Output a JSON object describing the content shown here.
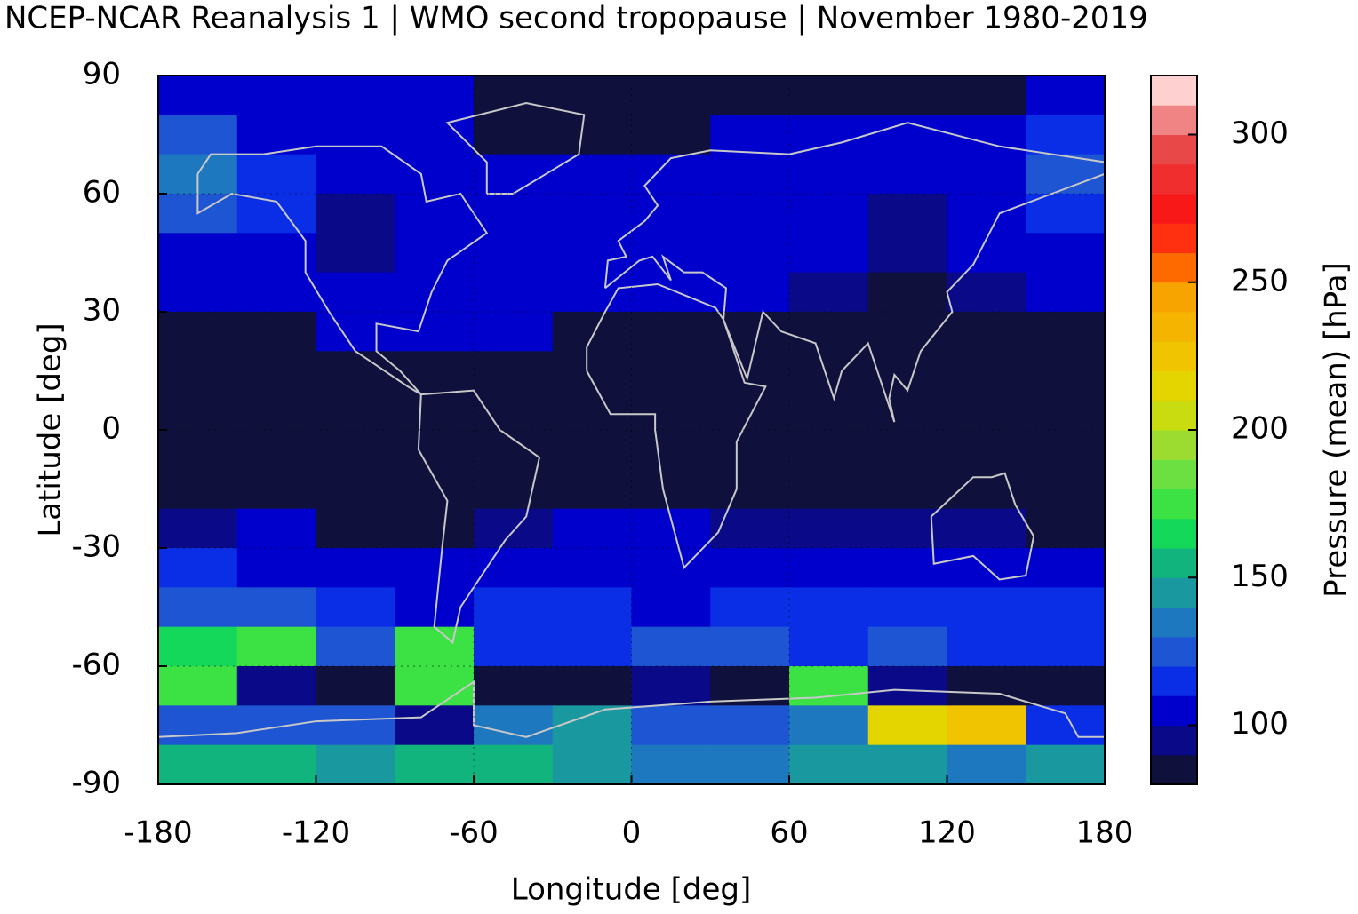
{
  "chart_data": {
    "type": "heatmap",
    "title": "NCEP-NCAR Reanalysis 1 | WMO second tropopause | November 1980-2019",
    "x_label": "Longitude [deg]",
    "y_label": "Latitude [deg]",
    "colorbar_label": "Pressure (mean) [hPa]",
    "x": [
      -165,
      -135,
      -105,
      -75,
      -45,
      -15,
      15,
      45,
      75,
      105,
      135,
      165
    ],
    "y": [
      85,
      75,
      65,
      55,
      45,
      35,
      25,
      15,
      5,
      -5,
      -15,
      -25,
      -35,
      -45,
      -55,
      -65,
      -75,
      -85
    ],
    "z": [
      [
        100,
        105,
        105,
        100,
        85,
        85,
        85,
        85,
        85,
        85,
        85,
        100
      ],
      [
        125,
        105,
        105,
        105,
        85,
        85,
        85,
        100,
        105,
        105,
        105,
        110
      ],
      [
        135,
        115,
        105,
        105,
        105,
        105,
        105,
        105,
        105,
        105,
        108,
        125
      ],
      [
        120,
        110,
        95,
        105,
        105,
        105,
        105,
        105,
        105,
        95,
        105,
        115
      ],
      [
        105,
        105,
        95,
        105,
        105,
        105,
        105,
        105,
        100,
        90,
        100,
        105
      ],
      [
        105,
        105,
        105,
        105,
        105,
        105,
        105,
        100,
        90,
        85,
        95,
        105
      ],
      [
        85,
        85,
        100,
        105,
        105,
        85,
        85,
        85,
        85,
        85,
        85,
        85
      ],
      [
        85,
        85,
        85,
        85,
        85,
        85,
        85,
        85,
        85,
        85,
        85,
        85
      ],
      [
        85,
        85,
        85,
        85,
        85,
        85,
        85,
        85,
        85,
        85,
        85,
        85
      ],
      [
        85,
        85,
        85,
        85,
        85,
        85,
        85,
        85,
        85,
        85,
        85,
        85
      ],
      [
        85,
        85,
        85,
        85,
        85,
        85,
        85,
        85,
        85,
        85,
        85,
        85
      ],
      [
        95,
        100,
        85,
        85,
        95,
        100,
        100,
        90,
        90,
        90,
        95,
        85
      ],
      [
        110,
        108,
        105,
        105,
        100,
        105,
        105,
        100,
        105,
        105,
        105,
        105
      ],
      [
        125,
        120,
        115,
        108,
        110,
        110,
        105,
        110,
        110,
        110,
        110,
        115
      ],
      [
        160,
        175,
        120,
        175,
        115,
        115,
        120,
        125,
        115,
        120,
        110,
        115
      ],
      [
        175,
        90,
        85,
        170,
        85,
        85,
        90,
        85,
        175,
        90,
        85,
        85
      ],
      [
        120,
        125,
        120,
        90,
        130,
        140,
        125,
        120,
        130,
        210,
        225,
        110
      ],
      [
        155,
        150,
        140,
        150,
        150,
        145,
        135,
        130,
        140,
        140,
        135,
        145
      ]
    ],
    "xlim": [
      -180,
      180
    ],
    "ylim": [
      -90,
      90
    ],
    "xticks": [
      -180,
      -120,
      -60,
      0,
      60,
      120,
      180
    ],
    "yticks": [
      -90,
      -60,
      -30,
      0,
      30,
      60,
      90
    ],
    "clim": [
      80,
      320
    ],
    "cticks": [
      100,
      150,
      200,
      250,
      300
    ],
    "colors": [
      "#10103c",
      "#0a0a88",
      "#0000cc",
      "#0a2ee6",
      "#1e55d2",
      "#1e78c0",
      "#1a98a0",
      "#10b47c",
      "#14d85a",
      "#3ce244",
      "#6ce040",
      "#9cdc30",
      "#c8dc10",
      "#e4d400",
      "#f0c400",
      "#f4b400",
      "#f8a400",
      "#ff6a00",
      "#ff3010",
      "#f81818",
      "#f02e2e",
      "#e84848",
      "#f08484",
      "#ffd0d0"
    ],
    "grid": true
  }
}
